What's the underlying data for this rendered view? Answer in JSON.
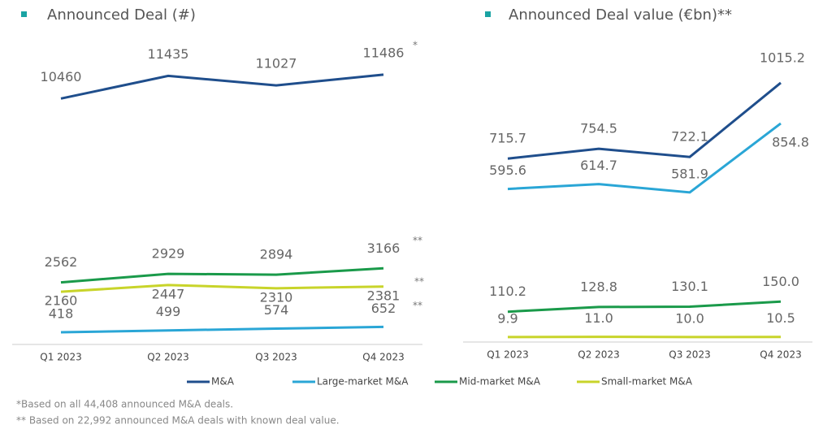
{
  "chart_data": [
    {
      "type": "line",
      "title": "Announced Deal (#)",
      "categories": [
        "Q1 2023",
        "Q2 2023",
        "Q3 2023",
        "Q4 2023"
      ],
      "ylim": [
        0,
        12600
      ],
      "series": [
        {
          "name": "M&A",
          "color": "#1f4e8c",
          "values": [
            10460,
            11435,
            11027,
            11486
          ]
        },
        {
          "name": "Large-market M&A",
          "color": "#2aa6d6",
          "values": [
            418,
            499,
            574,
            652
          ]
        },
        {
          "name": "Mid-market M&A",
          "color": "#1a9a4a",
          "values": [
            2562,
            2929,
            2894,
            3166
          ]
        },
        {
          "name": "Small-market M&A",
          "color": "#c8d42a",
          "values": [
            2160,
            2447,
            2310,
            2381
          ]
        }
      ],
      "annotations": [
        "*",
        "**",
        "**",
        "**"
      ]
    },
    {
      "type": "line",
      "title": "Announced Deal value (€bn)**",
      "categories": [
        "Q1 2023",
        "Q2 2023",
        "Q3 2023",
        "Q4 2023"
      ],
      "ylim": [
        0,
        1150
      ],
      "series": [
        {
          "name": "M&A",
          "color": "#1f4e8c",
          "values": [
            715.7,
            754.5,
            722.1,
            1015.2
          ],
          "value_labels": [
            "715.7",
            "754.5",
            "722.1",
            "1015.2"
          ]
        },
        {
          "name": "Large-market M&A",
          "color": "#2aa6d6",
          "values": [
            595.6,
            614.7,
            581.9,
            854.8
          ],
          "value_labels": [
            "595.6",
            "614.7",
            "581.9",
            "854.8"
          ]
        },
        {
          "name": "Mid-market M&A",
          "color": "#1a9a4a",
          "values": [
            110.2,
            128.8,
            130.1,
            150.0
          ],
          "value_labels": [
            "110.2",
            "128.8",
            "130.1",
            "150.0"
          ]
        },
        {
          "name": "Small-market M&A",
          "color": "#c8d42a",
          "values": [
            9.9,
            11.0,
            10.0,
            10.5
          ],
          "value_labels": [
            "9.9",
            "11.0",
            "10.0",
            "10.5"
          ]
        }
      ]
    }
  ],
  "footnotes": [
    "*Based on all 44,408 announced M&A deals.",
    "** Based on 22,992 announced M&A deals with known deal value."
  ]
}
